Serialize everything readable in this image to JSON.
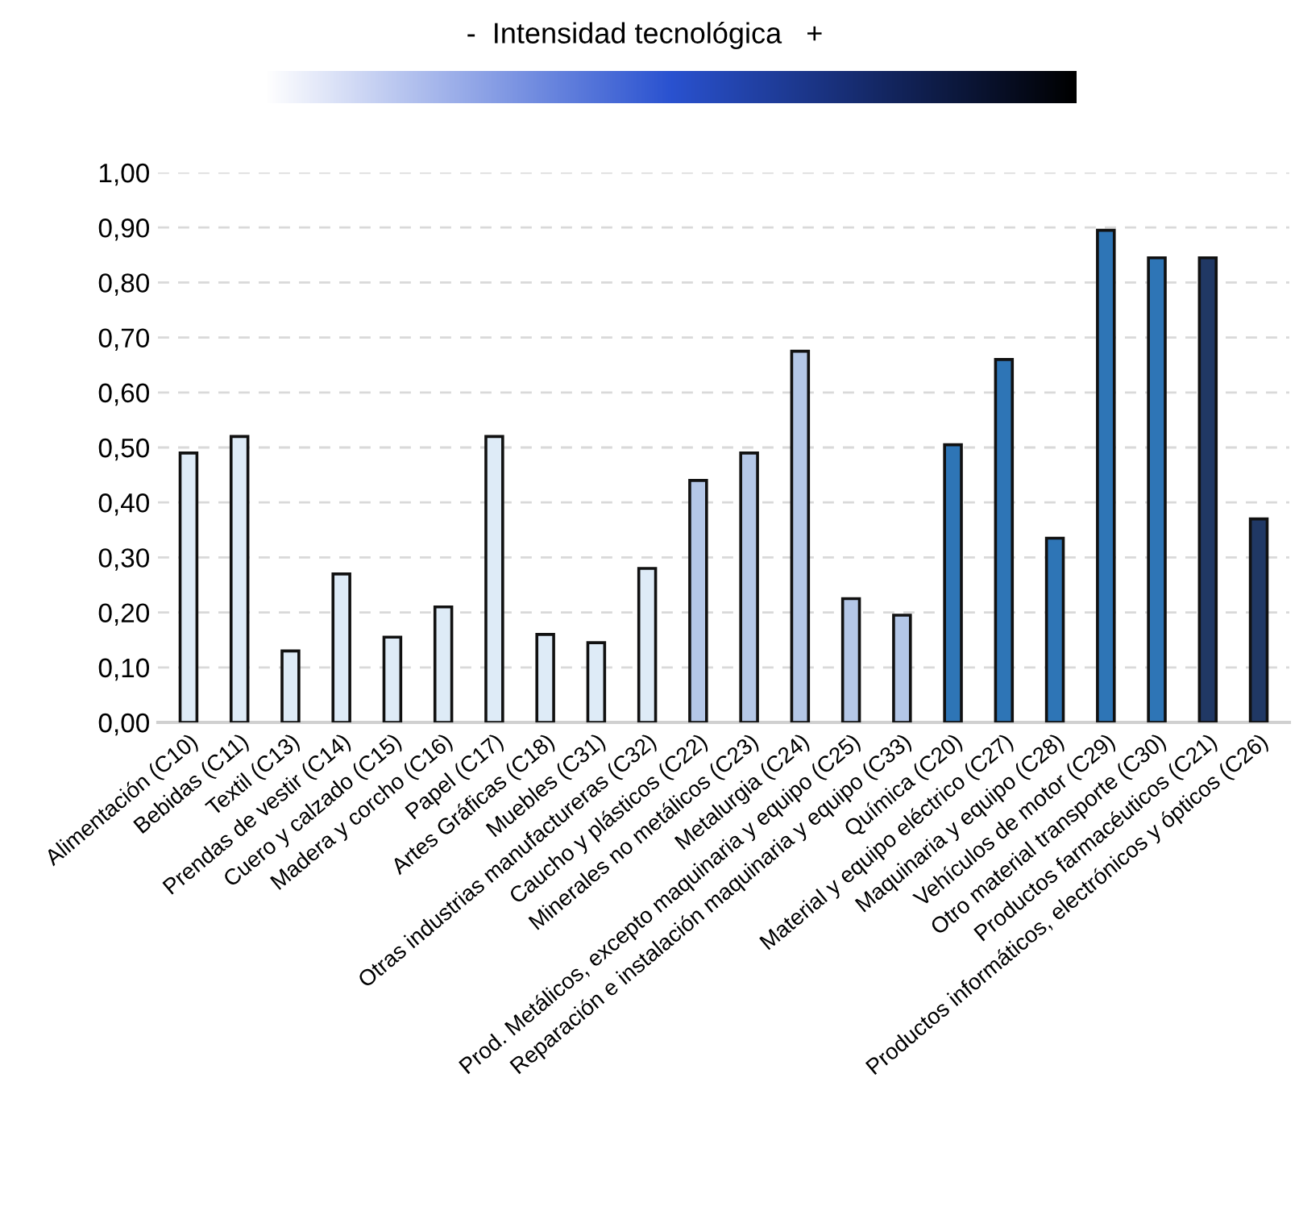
{
  "chart_data": {
    "type": "bar",
    "title": "-  Intensidad tecnológica   +",
    "categories": [
      "Alimentación (C10)",
      "Bebidas (C11)",
      "Textil (C13)",
      "Prendas de vestir (C14)",
      "Cuero y calzado (C15)",
      "Madera y corcho (C16)",
      "Papel (C17)",
      "Artes Gráficas (C18)",
      "Muebles (C31)",
      "Otras industrias manufactureras (C32)",
      "Caucho y plásticos (C22)",
      "Minerales no metálicos (C23)",
      "Metalurgia (C24)",
      "Prod. Metálicos, excepto maquinaria y equipo (C25)",
      "Reparación e instalación maquinaria y equipo (C33)",
      "Química (C20)",
      "Material y equipo eléctrico (C27)",
      "Maquinaria y equipo (C28)",
      "Vehículos de motor (C29)",
      "Otro material transporte (C30)",
      "Productos farmacéuticos (C21)",
      "Productos informáticos, electrónicos y ópticos (C26)"
    ],
    "values": [
      0.49,
      0.52,
      0.13,
      0.27,
      0.155,
      0.21,
      0.52,
      0.16,
      0.145,
      0.28,
      0.44,
      0.49,
      0.675,
      0.225,
      0.195,
      0.505,
      0.66,
      0.335,
      0.895,
      0.845,
      0.845,
      0.37
    ],
    "colors": [
      "#deebf7",
      "#deebf7",
      "#deebf7",
      "#deebf7",
      "#deebf7",
      "#deebf7",
      "#deebf7",
      "#deebf7",
      "#deebf7",
      "#deebf7",
      "#b4c7e7",
      "#b4c7e7",
      "#b4c7e7",
      "#b4c7e7",
      "#b4c7e7",
      "#2e75b6",
      "#2e75b6",
      "#2e75b6",
      "#2e75b6",
      "#2e75b6",
      "#203864",
      "#203864"
    ],
    "ylim": [
      0,
      1
    ],
    "yticks": [
      {
        "value": 0,
        "label": "0,00"
      },
      {
        "value": 0.1,
        "label": "0,10"
      },
      {
        "value": 0.2,
        "label": "0,20"
      },
      {
        "value": 0.3,
        "label": "0,30"
      },
      {
        "value": 0.4,
        "label": "0,40"
      },
      {
        "value": 0.5,
        "label": "0,50"
      },
      {
        "value": 0.6,
        "label": "0,60"
      },
      {
        "value": 0.7,
        "label": "0,70"
      },
      {
        "value": 0.8,
        "label": "0,80"
      },
      {
        "value": 0.9,
        "label": "0,90"
      },
      {
        "value": 1,
        "label": "1,00"
      }
    ],
    "grid": "y",
    "legend": false
  }
}
